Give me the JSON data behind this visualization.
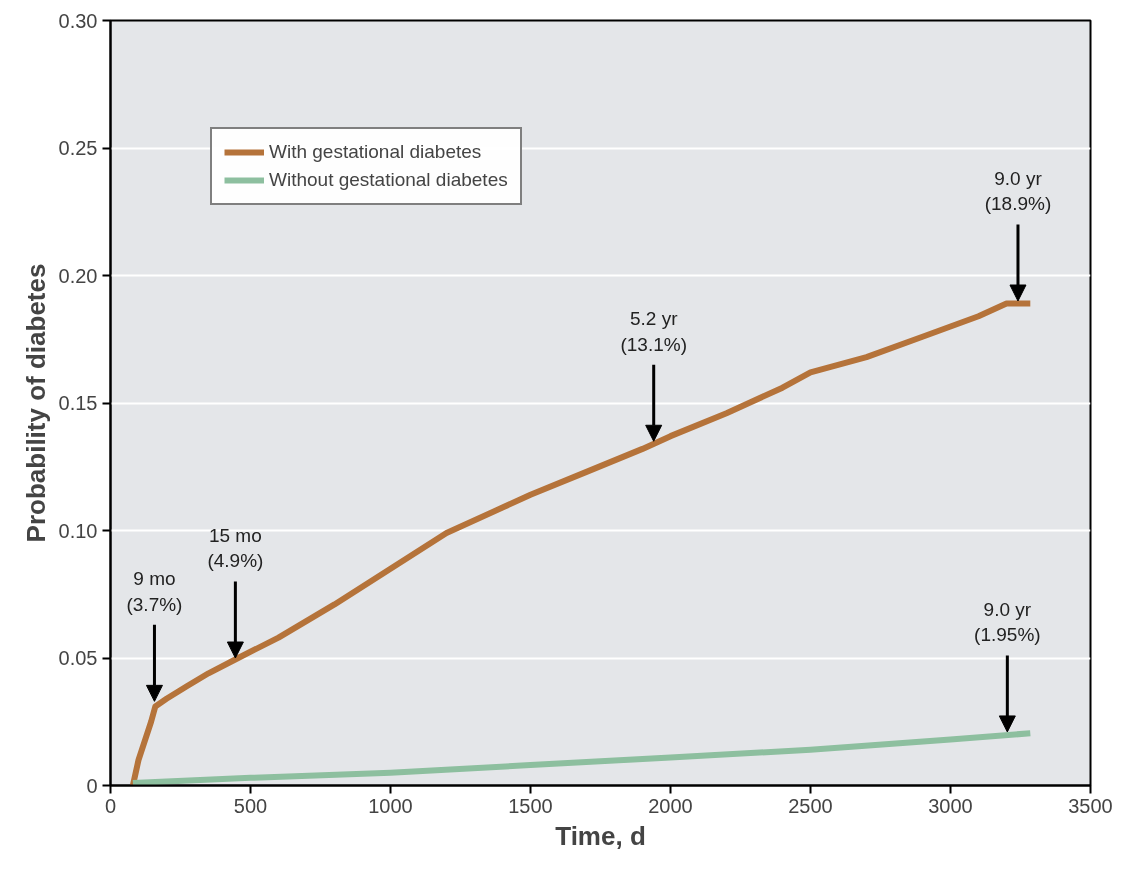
{
  "chart_data": {
    "type": "line",
    "xlabel": "Time, d",
    "ylabel": "Probability of diabetes",
    "xlim": [
      0,
      3500
    ],
    "ylim": [
      0,
      0.3
    ],
    "xticks": [
      0,
      500,
      1000,
      1500,
      2000,
      2500,
      3000,
      3500
    ],
    "yticks": [
      {
        "value": 0,
        "label": "0"
      },
      {
        "value": 0.05,
        "label": "0.05"
      },
      {
        "value": 0.1,
        "label": "0.10"
      },
      {
        "value": 0.15,
        "label": "0.15"
      },
      {
        "value": 0.2,
        "label": "0.20"
      },
      {
        "value": 0.25,
        "label": "0.25"
      },
      {
        "value": 0.3,
        "label": "0.30"
      }
    ],
    "grid": "y",
    "legend": "top left",
    "marker": "none",
    "line_style": "solid",
    "series": [
      {
        "name": "With gestational diabetes",
        "color": "#b5733a",
        "x": [
          80,
          90,
          100,
          115,
          130,
          145,
          160,
          200,
          274,
          350,
          456,
          600,
          800,
          1000,
          1200,
          1400,
          1500,
          1700,
          1900,
          2000,
          2200,
          2400,
          2500,
          2700,
          2900,
          3000,
          3100,
          3200,
          3285
        ],
        "values": [
          0,
          0.005,
          0.01,
          0.015,
          0.02,
          0.025,
          0.031,
          0.034,
          0.039,
          0.044,
          0.05,
          0.058,
          0.071,
          0.085,
          0.099,
          0.109,
          0.114,
          0.123,
          0.132,
          0.137,
          0.146,
          0.156,
          0.162,
          0.168,
          0.176,
          0.18,
          0.184,
          0.189,
          0.189
        ]
      },
      {
        "name": "Without gestational diabetes",
        "color": "#8dbf9f",
        "x": [
          80,
          500,
          1000,
          1500,
          2000,
          2500,
          3000,
          3285
        ],
        "values": [
          0.001,
          0.003,
          0.005,
          0.008,
          0.011,
          0.014,
          0.018,
          0.0205
        ]
      }
    ],
    "annotations": [
      {
        "text": "9 mo\n(3.7%)",
        "x": 157,
        "y": 0.033
      },
      {
        "text": "15 mo\n(4.9%)",
        "x": 446,
        "y": 0.05
      },
      {
        "text": "5.2 yr\n(13.1%)",
        "x": 1940,
        "y": 0.135
      },
      {
        "text": "9.0 yr\n(18.9%)",
        "x": 3241,
        "y": 0.19
      },
      {
        "text": "9.0 yr\n(1.95%)",
        "x": 3203,
        "y": 0.021
      }
    ]
  }
}
